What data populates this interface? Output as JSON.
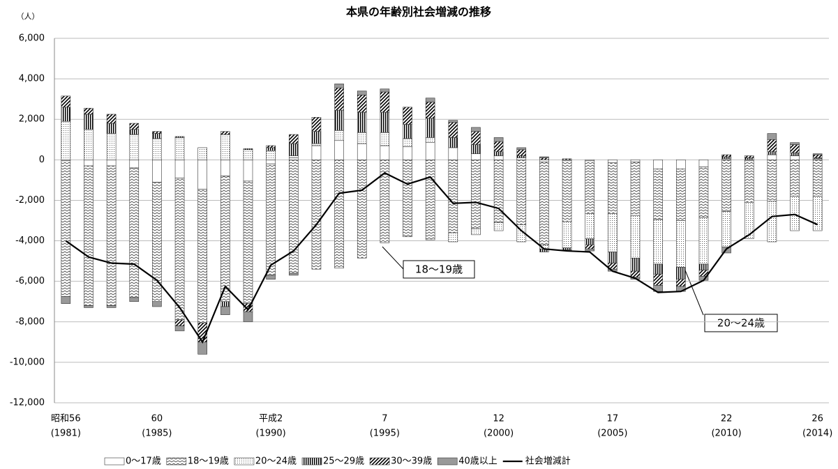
{
  "chart_data": {
    "type": "bar",
    "title": "本県の年齢別社会増減の推移",
    "y_unit": "（人）",
    "categories": [
      "昭和56",
      null,
      null,
      null,
      "60",
      null,
      null,
      null,
      null,
      "平成2",
      null,
      null,
      null,
      null,
      "7",
      null,
      null,
      null,
      null,
      "12",
      null,
      null,
      null,
      null,
      "17",
      null,
      null,
      null,
      null,
      "22",
      null,
      null,
      null,
      "26"
    ],
    "category_years": [
      "(1981)",
      null,
      null,
      null,
      "(1985)",
      null,
      null,
      null,
      null,
      "(1990)",
      null,
      null,
      null,
      null,
      "(1995)",
      null,
      null,
      null,
      null,
      "(2000)",
      null,
      null,
      null,
      null,
      "(2005)",
      null,
      null,
      null,
      null,
      "(2010)",
      null,
      null,
      null,
      "(2014)"
    ],
    "ylim": [
      -12000,
      6000
    ],
    "yticks": [
      {
        "value": -12000,
        "label": "-12,000"
      },
      {
        "value": -10000,
        "label": "-10,000"
      },
      {
        "value": -8000,
        "label": "-8,000"
      },
      {
        "value": -6000,
        "label": "-6,000"
      },
      {
        "value": -4000,
        "label": "-4,000"
      },
      {
        "value": -2000,
        "label": "-2,000"
      },
      0,
      {
        "value": 2000,
        "label": "2,000"
      },
      {
        "value": 4000,
        "label": "4,000"
      },
      {
        "value": 6000,
        "label": "6,000"
      }
    ],
    "grid": true,
    "series": [
      {
        "name": "0〜17歳",
        "pattern": "white",
        "values": [
          -50,
          -300,
          -300,
          -400,
          -1100,
          -900,
          -1450,
          -800,
          -1050,
          -200,
          100,
          700,
          950,
          800,
          700,
          650,
          850,
          600,
          300,
          200,
          100,
          -100,
          -50,
          -50,
          -150,
          -100,
          -450,
          -450,
          -350,
          50,
          -50,
          250,
          200,
          50
        ]
      },
      {
        "name": "18〜19歳",
        "pattern": "zigzag",
        "values": [
          -6700,
          -6900,
          -6900,
          -6400,
          -5900,
          -7000,
          -6600,
          -6200,
          -6050,
          -5500,
          -5600,
          -5400,
          -5350,
          -4850,
          -4100,
          -3800,
          -3950,
          -3600,
          -3400,
          -3100,
          -3200,
          -4100,
          -3000,
          -2600,
          -2500,
          -2650,
          -2500,
          -2550,
          -2500,
          -2550,
          -2050,
          -2050,
          -1800,
          -1800
        ]
      },
      {
        "name": "20〜24歳",
        "pattern": "dots",
        "values": [
          1900,
          1500,
          1300,
          1250,
          1050,
          1100,
          600,
          1250,
          500,
          450,
          100,
          100,
          500,
          550,
          650,
          400,
          250,
          -450,
          -300,
          -400,
          -850,
          -200,
          -1300,
          -1250,
          -1900,
          -2100,
          -2200,
          -2300,
          -2300,
          -1750,
          -1800,
          -2000,
          -1700,
          -1700
        ]
      },
      {
        "name": "25〜29歳",
        "pattern": "vertical",
        "values": [
          700,
          750,
          500,
          250,
          250,
          50,
          0,
          -250,
          50,
          150,
          600,
          600,
          1000,
          1000,
          1000,
          700,
          950,
          500,
          450,
          200,
          100,
          -150,
          -100,
          -300,
          -550,
          -650,
          -500,
          -600,
          -300,
          100,
          100,
          150,
          150,
          50
        ]
      },
      {
        "name": "30〜39歳",
        "pattern": "diagonal",
        "values": [
          550,
          300,
          450,
          300,
          100,
          -300,
          -950,
          150,
          -400,
          100,
          450,
          700,
          1100,
          850,
          1000,
          850,
          800,
          750,
          650,
          500,
          300,
          100,
          50,
          -200,
          -300,
          -300,
          -550,
          -350,
          -300,
          100,
          100,
          600,
          400,
          150
        ]
      },
      {
        "name": "40歳以上",
        "pattern": "gray",
        "values": [
          -350,
          -100,
          -100,
          -200,
          -250,
          -250,
          -600,
          -400,
          -500,
          -200,
          -100,
          0,
          200,
          200,
          150,
          0,
          200,
          100,
          200,
          200,
          100,
          50,
          -50,
          -100,
          -100,
          -100,
          -300,
          -250,
          -200,
          -300,
          0,
          300,
          100,
          50
        ]
      }
    ],
    "line": {
      "name": "社会増減計",
      "color": "#000000",
      "values": [
        -4000,
        -4800,
        -5100,
        -5150,
        -5950,
        -7300,
        -9000,
        -6250,
        -7400,
        -5200,
        -4500,
        -3200,
        -1650,
        -1500,
        -650,
        -1200,
        -850,
        -2150,
        -2100,
        -2400,
        -3500,
        -4400,
        -4500,
        -4550,
        -5500,
        -5850,
        -6550,
        -6500,
        -5950,
        -4400,
        -3700,
        -2800,
        -2700,
        -3200
      ]
    },
    "annotations": [
      "18〜19歳",
      "20〜24歳"
    ]
  }
}
